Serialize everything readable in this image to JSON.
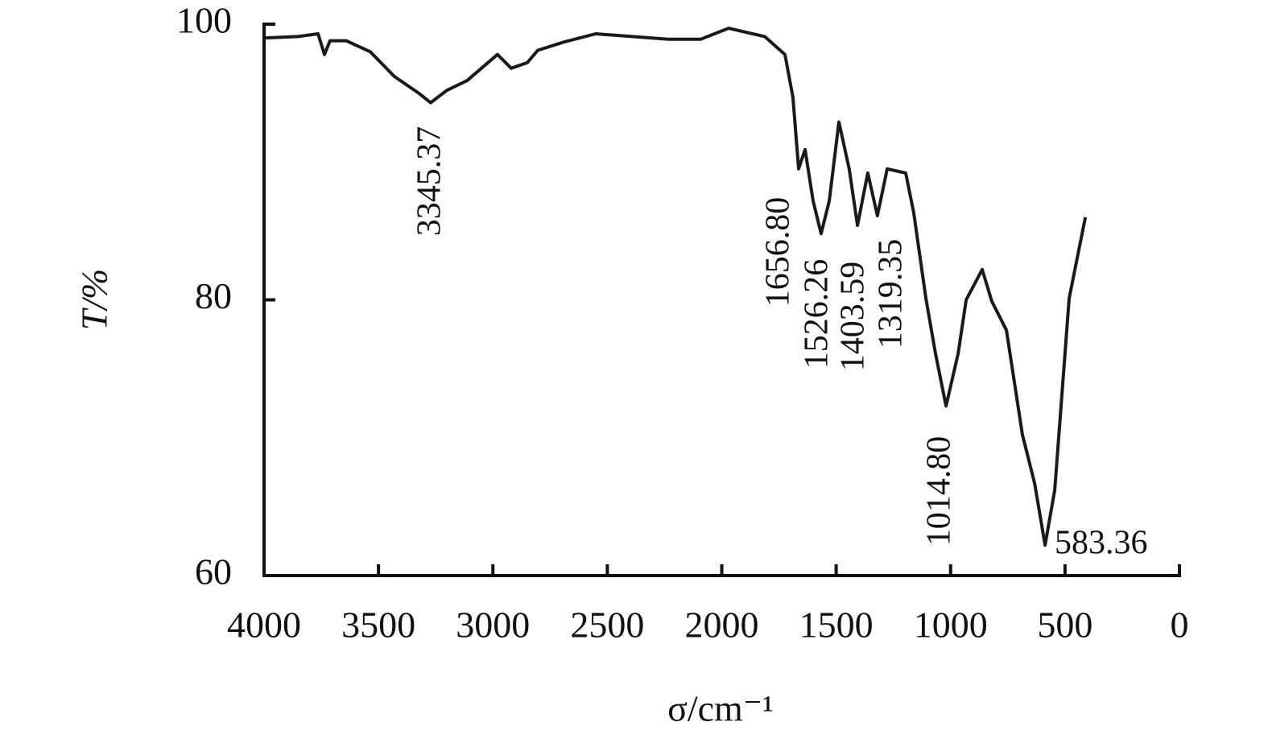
{
  "chart_data": {
    "type": "line",
    "xlabel": "σ/cm⁻¹",
    "ylabel": "T/%",
    "x": [
      3993,
      3852,
      3764,
      3736,
      3712,
      3641,
      3536,
      3430,
      3325,
      3272,
      3201,
      3113,
      2980,
      2920,
      2850,
      2804,
      2691,
      2551,
      2234,
      2093,
      1970,
      1812,
      1724,
      1689,
      1664,
      1636,
      1601,
      1566,
      1530,
      1488,
      1443,
      1407,
      1362,
      1320,
      1277,
      1196,
      1161,
      1108,
      1066,
      1020,
      967,
      932,
      862,
      820,
      756,
      686,
      633,
      587,
      545,
      482,
      447,
      411
    ],
    "values": [
      99.0,
      99.1,
      99.3,
      97.8,
      98.8,
      98.8,
      98.0,
      96.2,
      95.0,
      94.3,
      95.2,
      95.9,
      97.8,
      96.8,
      97.2,
      98.1,
      98.7,
      99.3,
      98.9,
      98.9,
      99.7,
      99.1,
      97.8,
      94.7,
      89.5,
      90.9,
      87.2,
      84.8,
      87.2,
      92.9,
      89.5,
      85.4,
      89.2,
      86.1,
      89.5,
      89.2,
      86.3,
      80.1,
      76.1,
      72.3,
      76.1,
      80.0,
      82.2,
      79.9,
      77.8,
      70.2,
      66.7,
      62.2,
      66.2,
      80.1,
      83.0,
      86.0
    ],
    "color": "#1a1a1a",
    "xlim": [
      4000,
      0
    ],
    "xticks": [
      4000,
      3500,
      3000,
      2500,
      2000,
      1500,
      1000,
      500,
      0
    ],
    "ylim": [
      60,
      100
    ],
    "yticks": [
      60,
      80,
      100
    ],
    "annotations": [
      "3345.37",
      "1656.80",
      "1526.26",
      "1403.59",
      "1319.35",
      "1014.80",
      "583.36"
    ]
  }
}
